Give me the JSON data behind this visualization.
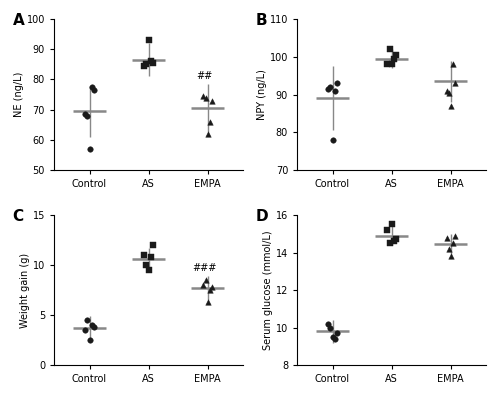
{
  "panels": [
    {
      "label": "A",
      "ylabel": "NE (ng/L)",
      "ylim": [
        50,
        100
      ],
      "yticks": [
        50,
        60,
        70,
        80,
        90,
        100
      ],
      "groups": [
        "Control",
        "AS",
        "EMPA"
      ],
      "means": [
        69.5,
        86.5,
        70.5
      ],
      "errors": [
        8.5,
        5.5,
        8.0
      ],
      "points": [
        [
          68.5,
          68.0,
          57.0,
          77.5,
          76.5
        ],
        [
          84.5,
          85.0,
          93.0,
          86.0,
          85.5
        ],
        [
          74.5,
          74.0,
          62.0,
          66.0,
          73.0
        ]
      ],
      "markers": [
        "o",
        "s",
        "^"
      ],
      "annotation": {
        "text": "##",
        "group": 2,
        "y": 79.5
      }
    },
    {
      "label": "B",
      "ylabel": "NPY (ng/L)",
      "ylim": [
        70,
        110
      ],
      "yticks": [
        70,
        80,
        90,
        100,
        110
      ],
      "groups": [
        "Control",
        "AS",
        "EMPA"
      ],
      "means": [
        89.0,
        99.5,
        93.5
      ],
      "errors": [
        8.5,
        2.5,
        5.5
      ],
      "points": [
        [
          91.5,
          92.0,
          78.0,
          91.0,
          93.0
        ],
        [
          98.0,
          102.0,
          98.0,
          99.5,
          100.5
        ],
        [
          91.0,
          90.5,
          87.0,
          98.0,
          93.0
        ]
      ],
      "markers": [
        "o",
        "s",
        "^"
      ],
      "annotation": null
    },
    {
      "label": "C",
      "ylabel": "Weight gain (g)",
      "ylim": [
        0,
        15
      ],
      "yticks": [
        0,
        5,
        10,
        15
      ],
      "groups": [
        "Control",
        "AS",
        "EMPA"
      ],
      "means": [
        3.7,
        10.65,
        7.75
      ],
      "errors": [
        1.2,
        1.1,
        1.2
      ],
      "points": [
        [
          3.5,
          4.5,
          2.5,
          4.0,
          3.8
        ],
        [
          11.0,
          10.0,
          9.5,
          10.8,
          12.0
        ],
        [
          8.0,
          8.5,
          6.3,
          7.5,
          7.8
        ]
      ],
      "markers": [
        "o",
        "s",
        "^"
      ],
      "annotation": {
        "text": "###",
        "group": 2,
        "y": 9.2
      }
    },
    {
      "label": "D",
      "ylabel": "Serum glucose (mmol/L)",
      "ylim": [
        8,
        16
      ],
      "yticks": [
        8,
        10,
        12,
        14,
        16
      ],
      "groups": [
        "Control",
        "AS",
        "EMPA"
      ],
      "means": [
        9.8,
        14.9,
        14.45
      ],
      "errors": [
        0.6,
        0.5,
        0.55
      ],
      "points": [
        [
          10.2,
          10.0,
          9.5,
          9.4,
          9.7
        ],
        [
          15.2,
          14.5,
          15.5,
          14.6,
          14.7
        ],
        [
          14.8,
          14.2,
          13.8,
          14.5,
          14.9
        ]
      ],
      "markers": [
        "o",
        "s",
        "^"
      ],
      "annotation": null
    }
  ],
  "point_color": "#1a1a1a",
  "mean_line_color": "#888888",
  "err_line_color": "#888888",
  "marker_size": 4,
  "fig_bg": "#ffffff"
}
